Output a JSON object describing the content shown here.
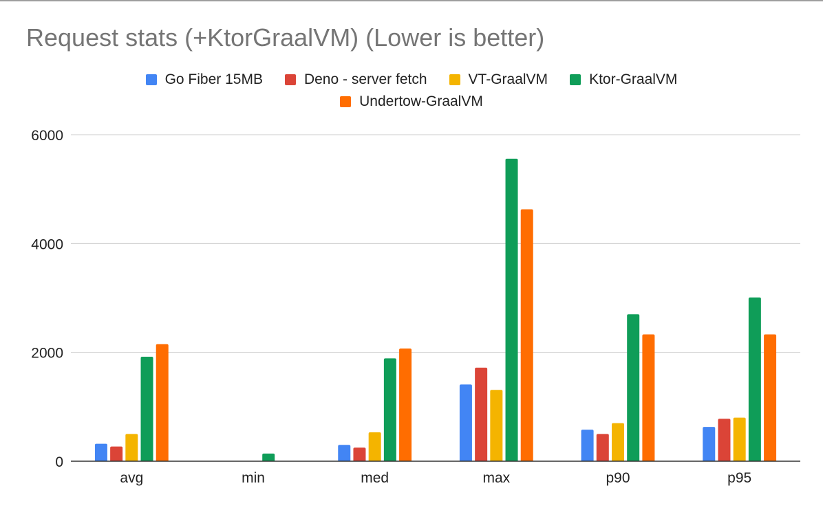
{
  "chart_data": {
    "type": "bar",
    "title": "Request stats (+KtorGraalVM) (Lower is better)",
    "xlabel": "",
    "ylabel": "",
    "categories": [
      "avg",
      "min",
      "med",
      "max",
      "p90",
      "p95"
    ],
    "ylim": [
      0,
      6000
    ],
    "yticks": [
      0,
      2000,
      4000,
      6000
    ],
    "grid": true,
    "legend_position": "top",
    "series": [
      {
        "name": "Go Fiber 15MB",
        "color": "#4285f4",
        "values": [
          320,
          0,
          300,
          1410,
          580,
          630
        ]
      },
      {
        "name": "Deno - server fetch",
        "color": "#db4437",
        "values": [
          270,
          0,
          250,
          1720,
          500,
          780
        ]
      },
      {
        "name": "VT-GraalVM",
        "color": "#f4b400",
        "values": [
          500,
          0,
          530,
          1310,
          700,
          800
        ]
      },
      {
        "name": "Ktor-GraalVM",
        "color": "#0f9d58",
        "values": [
          1920,
          140,
          1890,
          5560,
          2700,
          3010
        ]
      },
      {
        "name": "Undertow-GraalVM",
        "color": "#ff6d01",
        "values": [
          2150,
          0,
          2070,
          4630,
          2330,
          2330
        ]
      }
    ]
  }
}
